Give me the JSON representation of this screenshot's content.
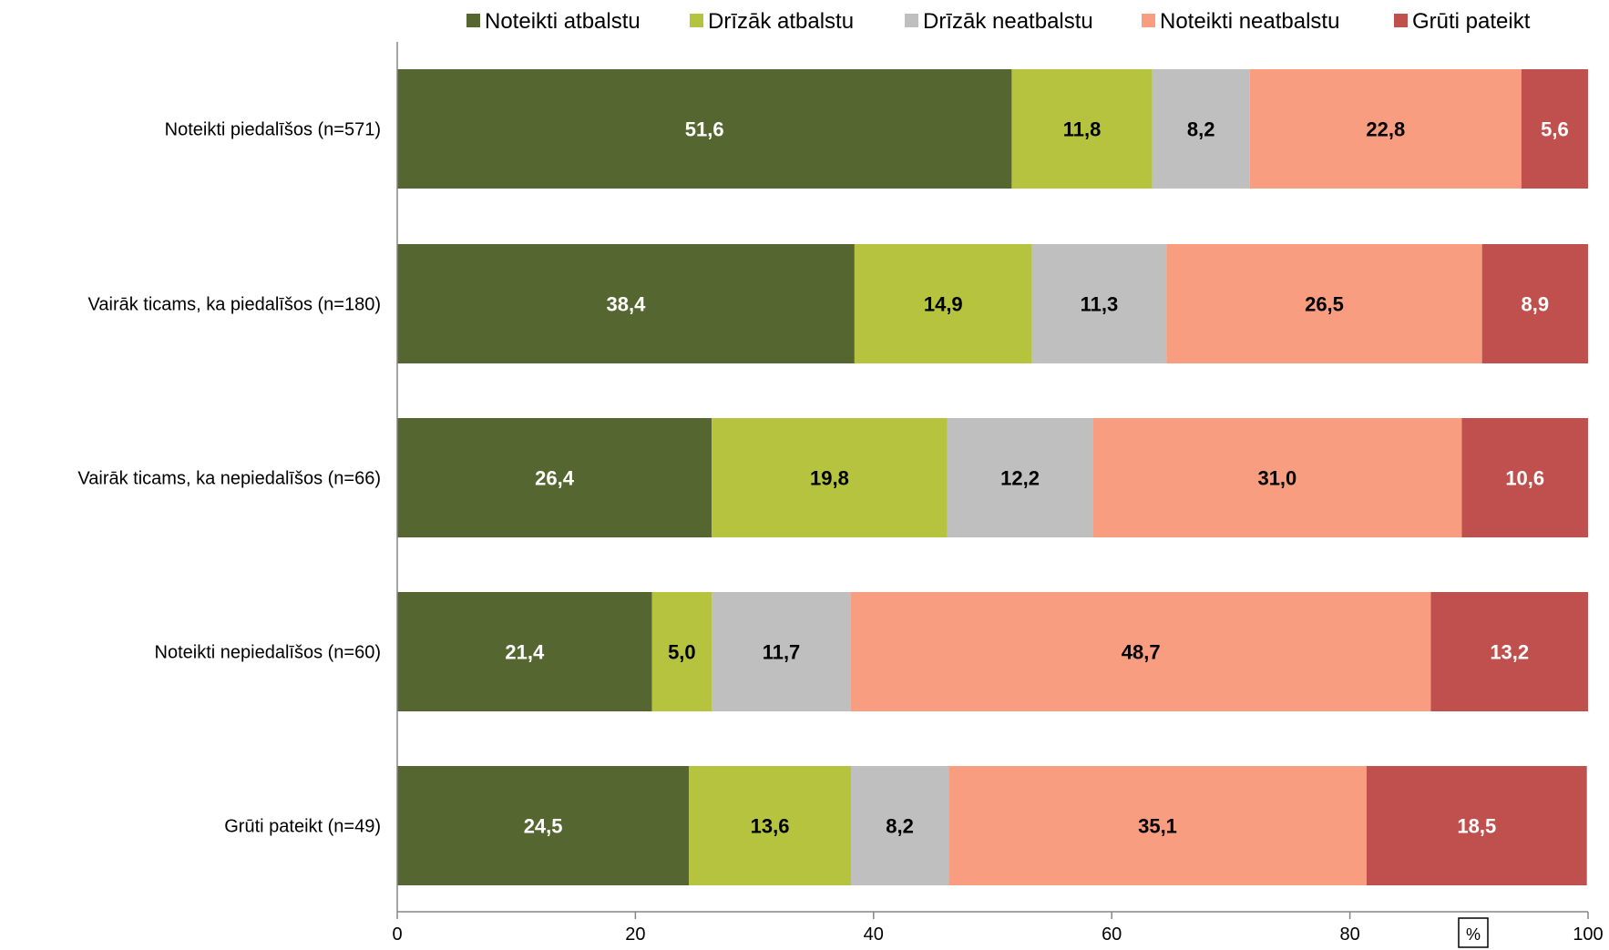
{
  "chart_data": {
    "type": "bar",
    "orientation": "horizontal",
    "stacked": true,
    "categories": [
      "Noteikti piedalīšos (n=571)",
      "Vairāk ticams, ka piedalīšos (n=180)",
      "Vairāk ticams, ka nepiedalīšos (n=66)",
      "Noteikti nepiedalīšos (n=60)",
      "Grūti pateikt (n=49)"
    ],
    "series": [
      {
        "name": "Noteikti atbalstu",
        "color": "#556630",
        "label_color": "#ffffff",
        "values": [
          51.6,
          38.4,
          26.4,
          21.4,
          24.5
        ],
        "labels": [
          "51,6",
          "38,4",
          "26,4",
          "21,4",
          "24,5"
        ]
      },
      {
        "name": "Drīzāk atbalstu",
        "color": "#b5c33f",
        "label_color": "#000000",
        "values": [
          11.8,
          14.9,
          19.8,
          5.0,
          13.6
        ],
        "labels": [
          "11,8",
          "14,9",
          "19,8",
          "5,0",
          "13,6"
        ]
      },
      {
        "name": "Drīzāk neatbalstu",
        "color": "#bfbfbf",
        "label_color": "#000000",
        "values": [
          8.2,
          11.3,
          12.2,
          11.7,
          8.2
        ],
        "labels": [
          "8,2",
          "11,3",
          "12,2",
          "11,7",
          "8,2"
        ]
      },
      {
        "name": "Noteikti neatbalstu",
        "color": "#f89d7f",
        "label_color": "#000000",
        "values": [
          22.8,
          26.5,
          31.0,
          48.7,
          35.1
        ],
        "labels": [
          "22,8",
          "26,5",
          "31,0",
          "48,7",
          "35,1"
        ]
      },
      {
        "name": "Grūti pateikt",
        "color": "#c0504d",
        "label_color": "#ffffff",
        "values": [
          5.6,
          8.9,
          10.6,
          13.2,
          18.5
        ],
        "labels": [
          "5,6",
          "8,9",
          "10,6",
          "13,2",
          "18,5"
        ]
      }
    ],
    "xlim": [
      0,
      100
    ],
    "x_ticks": [
      0,
      20,
      40,
      60,
      80,
      100
    ],
    "x_tick_labels": [
      "0",
      "20",
      "40",
      "60",
      "80",
      "100"
    ],
    "unit_label": "%",
    "legend_position": "top",
    "grid": false
  }
}
